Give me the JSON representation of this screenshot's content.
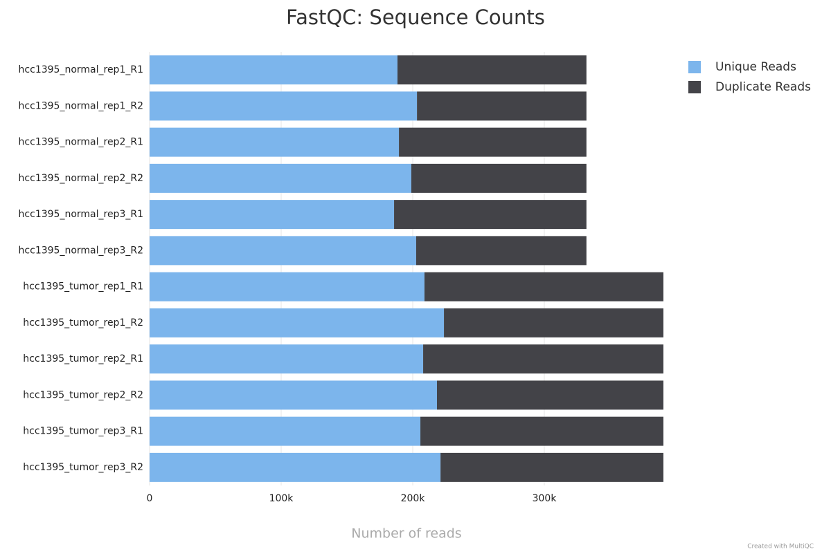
{
  "chart_data": {
    "type": "bar",
    "orientation": "horizontal",
    "stacked": true,
    "title": "FastQC: Sequence Counts",
    "x_label": "Number of reads",
    "credit": "Created with MultiQC",
    "categories": [
      "hcc1395_normal_rep1_R1",
      "hcc1395_normal_rep1_R2",
      "hcc1395_normal_rep2_R1",
      "hcc1395_normal_rep2_R2",
      "hcc1395_normal_rep3_R1",
      "hcc1395_normal_rep3_R2",
      "hcc1395_tumor_rep1_R1",
      "hcc1395_tumor_rep1_R2",
      "hcc1395_tumor_rep2_R1",
      "hcc1395_tumor_rep2_R2",
      "hcc1395_tumor_rep3_R1",
      "hcc1395_tumor_rep3_R2"
    ],
    "series": [
      {
        "name": "Unique Reads",
        "color": "#7cb5ec",
        "values": [
          188400,
          203200,
          189500,
          198900,
          185800,
          202600,
          208900,
          223700,
          207900,
          218400,
          205800,
          221100
        ]
      },
      {
        "name": "Duplicate Reads",
        "color": "#434348",
        "values": [
          143600,
          128800,
          142500,
          133100,
          146200,
          129400,
          181600,
          166800,
          182600,
          172100,
          184700,
          169400
        ]
      }
    ],
    "xlim": [
      0,
      390500
    ],
    "xticks": [
      0,
      {
        "value": 100000,
        "label": "100k"
      },
      {
        "value": 200000,
        "label": "200k"
      },
      {
        "value": 300000,
        "label": "300k"
      }
    ],
    "grid": true,
    "legend": "top-right"
  }
}
